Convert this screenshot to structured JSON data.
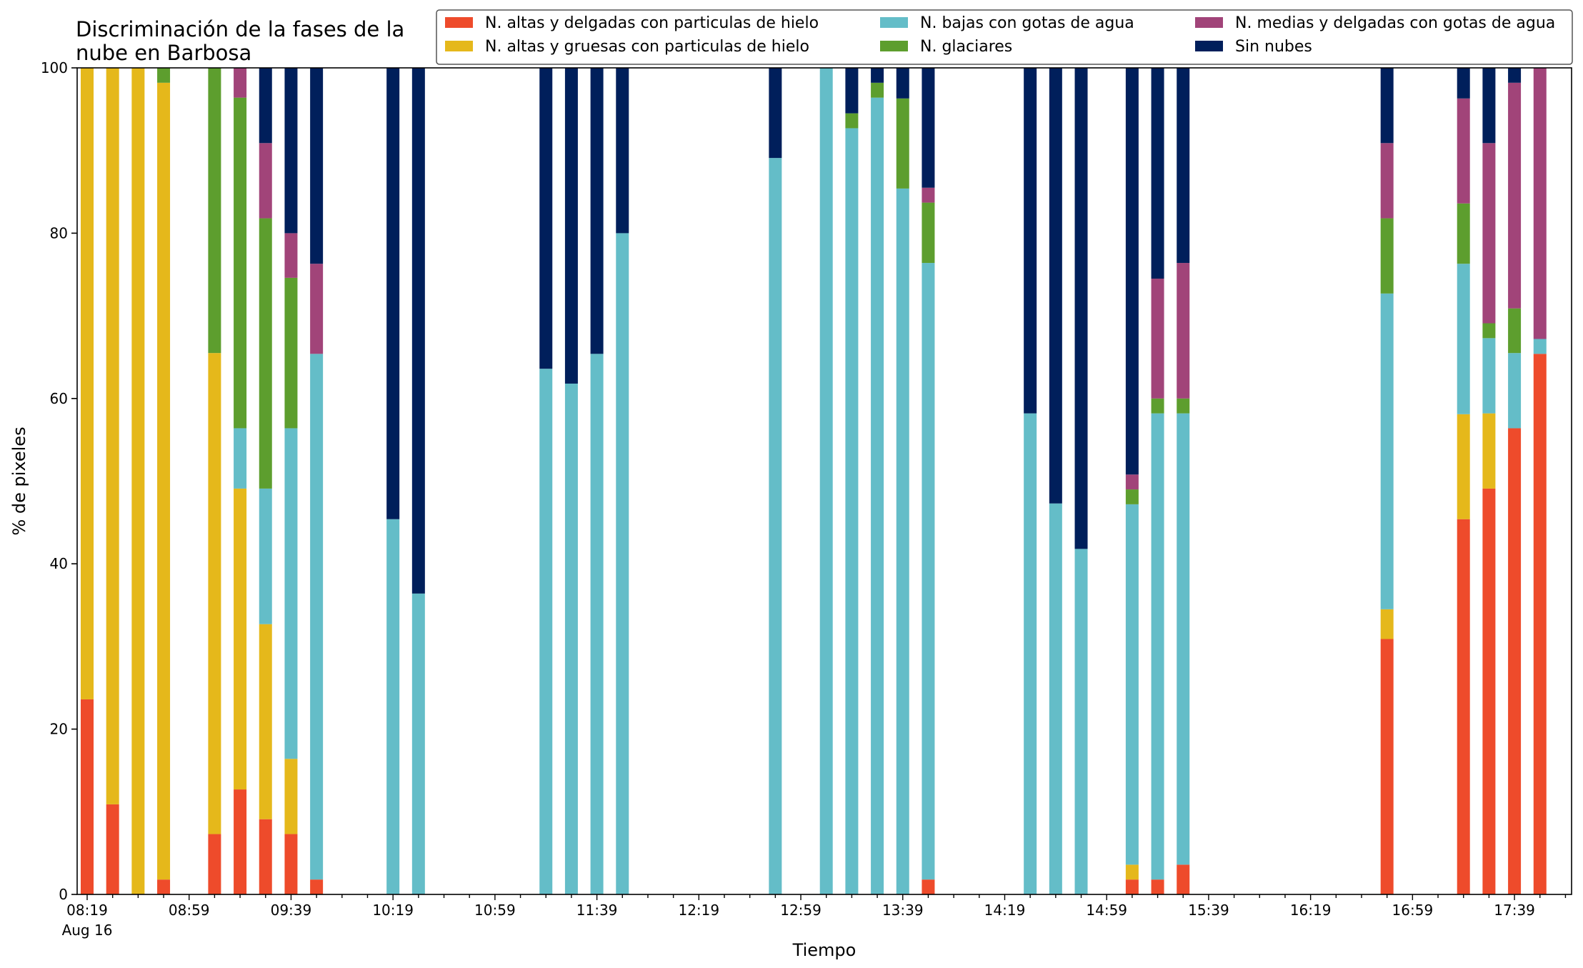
{
  "chart_data": {
    "type": "bar",
    "stacked": true,
    "title": "Discriminación de la fases de la nube en Barbosa",
    "title_lines": [
      "Discriminación de la fases de la",
      "nube en Barbosa"
    ],
    "xlabel": "Tiempo",
    "ylabel": "% de pixeles",
    "ylim": [
      0,
      100
    ],
    "yticks": [
      0,
      20,
      40,
      60,
      80,
      100
    ],
    "x_tick_labels": [
      "08:19",
      "08:59",
      "09:39",
      "10:19",
      "10:59",
      "11:39",
      "12:19",
      "12:59",
      "13:39",
      "14:19",
      "14:59",
      "15:39",
      "16:19",
      "16:59",
      "17:39"
    ],
    "x_date_label": "Aug 16",
    "grid": false,
    "legend_position": "top-right",
    "colors": {
      "altas_delgadas": "#ee4b2b",
      "altas_gruesas": "#e5b81b",
      "bajas": "#64bdc8",
      "glaciares": "#5d9e2e",
      "medias": "#a14479",
      "sin_nubes": "#001f5b"
    },
    "series": [
      {
        "key": "altas_delgadas",
        "name": "N. altas y delgadas con particulas de hielo"
      },
      {
        "key": "altas_gruesas",
        "name": "N. altas y gruesas con particulas de hielo"
      },
      {
        "key": "bajas",
        "name": "N. bajas con gotas de agua"
      },
      {
        "key": "glaciares",
        "name": "N. glaciares"
      },
      {
        "key": "medias",
        "name": "N. medias y delgadas con gotas de agua"
      },
      {
        "key": "sin_nubes",
        "name": "Sin nubes"
      }
    ],
    "bars": [
      {
        "time": "08:19",
        "values": [
          23.6,
          76.4,
          0,
          0,
          0,
          0
        ]
      },
      {
        "time": "08:29",
        "values": [
          10.9,
          89.1,
          0,
          0,
          0,
          0
        ]
      },
      {
        "time": "08:39",
        "values": [
          0,
          100,
          0,
          0,
          0,
          0
        ]
      },
      {
        "time": "08:49",
        "values": [
          1.8,
          96.4,
          0,
          1.8,
          0,
          0
        ]
      },
      {
        "time": "09:09",
        "values": [
          7.3,
          58.2,
          0,
          34.5,
          0,
          0
        ]
      },
      {
        "time": "09:19",
        "values": [
          12.7,
          36.4,
          7.3,
          40.0,
          3.6,
          0
        ]
      },
      {
        "time": "09:29",
        "values": [
          9.1,
          23.6,
          16.4,
          32.7,
          9.1,
          9.1
        ]
      },
      {
        "time": "09:39",
        "values": [
          7.3,
          9.1,
          40.0,
          18.2,
          5.4,
          20.0
        ]
      },
      {
        "time": "09:49",
        "values": [
          1.8,
          0,
          63.6,
          0,
          10.9,
          23.7
        ]
      },
      {
        "time": "10:19",
        "values": [
          0,
          0,
          45.4,
          0,
          0,
          54.6
        ]
      },
      {
        "time": "10:29",
        "values": [
          0,
          0,
          36.4,
          0,
          0,
          63.6
        ]
      },
      {
        "time": "11:19",
        "values": [
          0,
          0,
          63.6,
          0,
          0,
          36.4
        ]
      },
      {
        "time": "11:29",
        "values": [
          0,
          0,
          61.8,
          0,
          0,
          38.2
        ]
      },
      {
        "time": "11:39",
        "values": [
          0,
          0,
          65.4,
          0,
          0,
          34.6
        ]
      },
      {
        "time": "11:49",
        "values": [
          0,
          0,
          80.0,
          0,
          0,
          20.0
        ]
      },
      {
        "time": "12:49",
        "values": [
          0,
          0,
          89.1,
          0,
          0,
          10.9
        ]
      },
      {
        "time": "13:09",
        "values": [
          0,
          0,
          100,
          0,
          0,
          0
        ]
      },
      {
        "time": "13:19",
        "values": [
          0,
          0,
          92.7,
          1.8,
          0,
          5.5
        ]
      },
      {
        "time": "13:29",
        "values": [
          0,
          0,
          96.4,
          1.8,
          0,
          1.8
        ]
      },
      {
        "time": "13:39",
        "values": [
          0,
          0,
          85.4,
          10.9,
          0,
          3.7
        ]
      },
      {
        "time": "13:49",
        "values": [
          1.8,
          0,
          74.6,
          7.3,
          1.8,
          14.5
        ]
      },
      {
        "time": "14:29",
        "values": [
          0,
          0,
          58.2,
          0,
          0,
          41.8
        ]
      },
      {
        "time": "14:39",
        "values": [
          0,
          0,
          47.3,
          0,
          0,
          52.7
        ]
      },
      {
        "time": "14:49",
        "values": [
          0,
          0,
          41.8,
          0,
          0,
          58.2
        ]
      },
      {
        "time": "15:09",
        "values": [
          1.8,
          1.8,
          43.6,
          1.8,
          1.8,
          49.2
        ]
      },
      {
        "time": "15:19",
        "values": [
          1.8,
          0,
          56.4,
          1.8,
          14.5,
          25.5
        ]
      },
      {
        "time": "15:29",
        "values": [
          3.6,
          0,
          54.6,
          1.8,
          16.4,
          23.6
        ]
      },
      {
        "time": "16:49",
        "values": [
          30.9,
          3.6,
          38.2,
          9.1,
          9.1,
          9.1
        ]
      },
      {
        "time": "17:19",
        "values": [
          45.4,
          12.7,
          18.2,
          7.3,
          12.7,
          3.7
        ]
      },
      {
        "time": "17:29",
        "values": [
          49.1,
          9.1,
          9.1,
          1.8,
          21.8,
          9.1
        ]
      },
      {
        "time": "17:39",
        "values": [
          56.4,
          0,
          9.1,
          5.4,
          27.3,
          1.8
        ]
      },
      {
        "time": "17:49",
        "values": [
          65.4,
          0,
          1.8,
          0,
          32.8,
          0
        ]
      }
    ]
  }
}
